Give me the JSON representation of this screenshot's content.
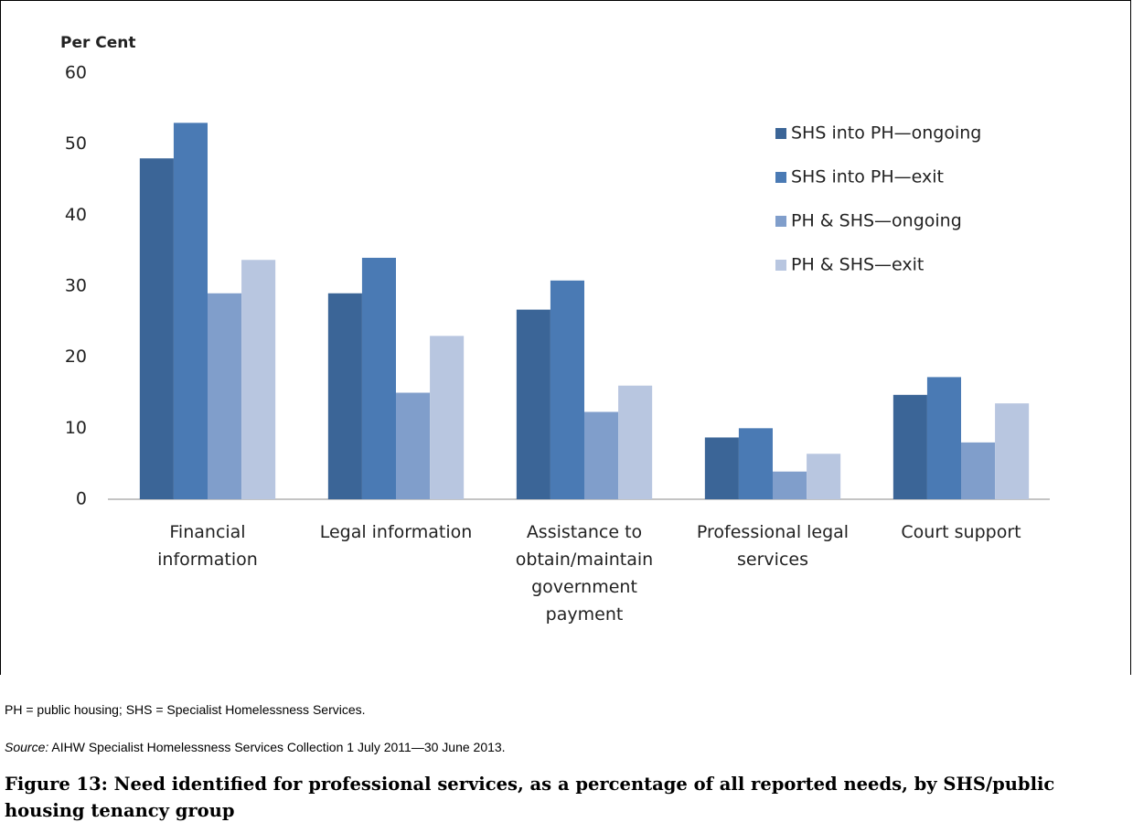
{
  "chart_data": {
    "type": "bar",
    "y_label": "Per Cent",
    "categories": [
      [
        "Financial",
        "information"
      ],
      [
        "Legal information"
      ],
      [
        "Assistance to",
        "obtain/maintain",
        "government",
        "payment"
      ],
      [
        "Professional legal",
        "services"
      ],
      [
        "Court support"
      ]
    ],
    "series": [
      {
        "name": "SHS into PH—ongoing",
        "color": "#3b6597",
        "values": [
          48,
          29,
          26.7,
          8.7,
          14.7
        ]
      },
      {
        "name": "SHS into PH—exit",
        "color": "#4a7ab4",
        "values": [
          53,
          34,
          30.8,
          10,
          17.2
        ]
      },
      {
        "name": "PH & SHS—ongoing",
        "color": "#809ecb",
        "values": [
          29,
          15,
          12.3,
          3.9,
          8
        ]
      },
      {
        "name": "PH & SHS—exit",
        "color": "#b8c6e0",
        "values": [
          33.7,
          23,
          16,
          6.4,
          13.5
        ]
      }
    ],
    "ylim": [
      0,
      60
    ],
    "yticks": [
      0,
      10,
      20,
      30,
      40,
      50,
      60
    ],
    "grid": false,
    "legend": "upper right"
  },
  "notes": {
    "abbreviations": "PH = public housing; SHS = Specialist Homelessness Services.",
    "source_label": "Source:",
    "source_text": "AIHW Specialist Homelessness Services Collection 1 July 2011—30 June 2013.",
    "caption": "Figure 13: Need identified for professional services, as a percentage of all reported needs, by SHS/public housing tenancy group"
  }
}
